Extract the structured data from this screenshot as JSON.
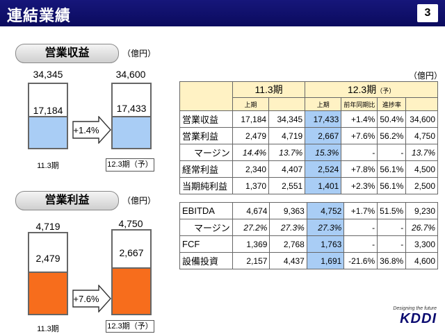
{
  "header": {
    "title": "連結業績",
    "page": "3"
  },
  "revenue_chart": {
    "title": "営業収益",
    "unit": "（億円）",
    "arrow_label": "+1.4%",
    "bars": [
      {
        "period": "11.3期",
        "total": "34,345",
        "first_half": "17,184",
        "fill_fraction": 0.5
      },
      {
        "period": "12.3期（予）",
        "total": "34,600",
        "first_half": "17,433",
        "fill_fraction": 0.5
      }
    ]
  },
  "profit_chart": {
    "title": "営業利益",
    "unit": "（億円）",
    "arrow_label": "+7.6%",
    "bars": [
      {
        "period": "11.3期",
        "total": "4,719",
        "first_half": "2,479",
        "fill_fraction": 0.525
      },
      {
        "period": "12.3期（予）",
        "total": "4,750",
        "first_half": "2,667",
        "fill_fraction": 0.56
      }
    ]
  },
  "table": {
    "unit": "（億円）",
    "header": {
      "fy1": "11.3期",
      "fy2": "12.3期",
      "fy2_tag": "（予）",
      "h1": "上期",
      "h1b": "上期",
      "yoy": "前年同期比",
      "progress": "進捗率"
    },
    "rows": [
      {
        "label": "営業収益",
        "h1": "17,184",
        "full": "34,345",
        "h1b": "17,433",
        "yoy": "+1.4%",
        "prog": "50.4%",
        "fy": "34,600",
        "italic": false,
        "sub": false
      },
      {
        "label": "営業利益",
        "h1": "2,479",
        "full": "4,719",
        "h1b": "2,667",
        "yoy": "+7.6%",
        "prog": "56.2%",
        "fy": "4,750",
        "italic": false,
        "sub": false
      },
      {
        "label": "マージン",
        "h1": "14.4%",
        "full": "13.7%",
        "h1b": "15.3%",
        "yoy": "-",
        "prog": "-",
        "fy": "13.7%",
        "italic": true,
        "sub": true
      },
      {
        "label": "経常利益",
        "h1": "2,340",
        "full": "4,407",
        "h1b": "2,524",
        "yoy": "+7.8%",
        "prog": "56.1%",
        "fy": "4,500",
        "italic": false,
        "sub": false
      },
      {
        "label": "当期純利益",
        "h1": "1,370",
        "full": "2,551",
        "h1b": "1,401",
        "yoy": "+2.3%",
        "prog": "56.1%",
        "fy": "2,500",
        "italic": false,
        "sub": false
      }
    ],
    "rows2": [
      {
        "label": "EBITDA",
        "h1": "4,674",
        "full": "9,363",
        "h1b": "4,752",
        "yoy": "+1.7%",
        "prog": "51.5%",
        "fy": "9,230",
        "italic": false,
        "sub": false
      },
      {
        "label": "マージン",
        "h1": "27.2%",
        "full": "27.3%",
        "h1b": "27.3%",
        "yoy": "-",
        "prog": "-",
        "fy": "26.7%",
        "italic": true,
        "sub": true
      },
      {
        "label": "FCF",
        "h1": "1,369",
        "full": "2,768",
        "h1b": "1,763",
        "yoy": "-",
        "prog": "-",
        "fy": "3,300",
        "italic": false,
        "sub": false
      },
      {
        "label": "設備投資",
        "h1": "2,157",
        "full": "4,437",
        "h1b": "1,691",
        "yoy": "-21.6%",
        "prog": "36.8%",
        "fy": "4,600",
        "italic": false,
        "sub": false
      }
    ]
  },
  "logo": {
    "tagline": "Designing the future",
    "mark": "KDDI"
  },
  "colors": {
    "header_bg": "#0b0b5e",
    "blue_fill": "#a9cdf5",
    "orange_fill": "#f76d1c",
    "table_header": "#fff2c4"
  }
}
